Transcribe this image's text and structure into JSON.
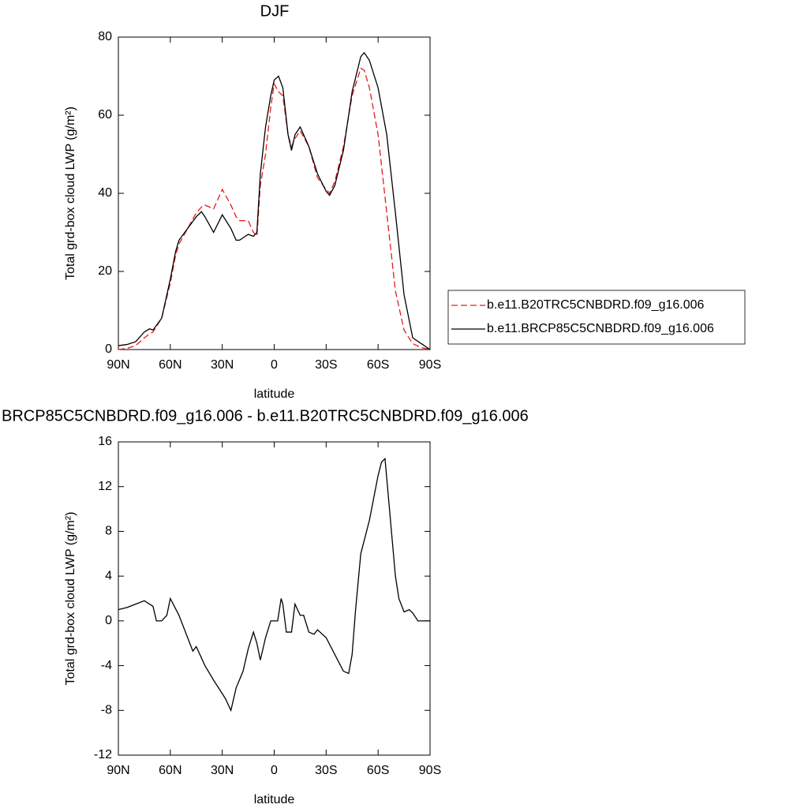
{
  "chart_data": [
    {
      "type": "line",
      "title": "DJF",
      "xlabel": "latitude",
      "ylabel": "Total grd-box cloud LWP (g/m²)",
      "x": [
        90,
        85,
        80,
        75,
        72,
        70,
        65,
        60,
        57,
        55,
        50,
        45,
        42,
        40,
        35,
        30,
        25,
        22,
        20,
        15,
        12,
        10,
        8,
        5,
        2,
        0,
        -2.5,
        -5,
        -8,
        -10,
        -12,
        -15,
        -20,
        -25,
        -30,
        -32,
        -35,
        -40,
        -45,
        -50,
        -52,
        -55,
        -60,
        -65,
        -70,
        -75,
        -80,
        -85,
        -90
      ],
      "series": [
        {
          "name": "b.e11.B20TRC5CNBDRD.f09_g16.006",
          "color": "#e41a1c",
          "line_style": "dashed",
          "values": [
            0,
            0.3,
            1,
            3,
            4,
            4.5,
            8,
            17,
            24,
            27,
            31,
            35,
            36.5,
            37,
            36,
            41,
            37,
            34,
            33,
            33,
            30,
            29,
            42,
            50,
            62,
            68,
            66,
            65,
            55,
            52,
            54,
            56,
            52,
            44,
            41,
            40,
            43,
            52,
            65,
            72,
            71.5,
            67,
            55,
            35,
            15,
            5,
            1.5,
            0.5,
            0
          ]
        },
        {
          "name": "b.e11.BRCP85C5CNBDRD.f09_g16.006",
          "color": "#000000",
          "line_style": "solid",
          "values": [
            1,
            1.3,
            2,
            4.5,
            5.3,
            5,
            8,
            18,
            25,
            28,
            31,
            34,
            35.3,
            34,
            30,
            34.5,
            31,
            28,
            28,
            29.5,
            29,
            30,
            45,
            57,
            65,
            69,
            70,
            67,
            55,
            51,
            55,
            57,
            52,
            45,
            40.5,
            39.5,
            42,
            51,
            66,
            75,
            76,
            74,
            67,
            55,
            35,
            14,
            3,
            1.5,
            0
          ]
        }
      ],
      "xlim": [
        90,
        -90
      ],
      "xticks": [
        {
          "value": 90,
          "label": "90N"
        },
        {
          "value": 60,
          "label": "60N"
        },
        {
          "value": 30,
          "label": "30N"
        },
        0,
        {
          "value": -30,
          "label": "30S"
        },
        {
          "value": -60,
          "label": "60S"
        },
        {
          "value": -90,
          "label": "90S"
        }
      ],
      "ylim": [
        0,
        80
      ],
      "yticks": [
        0,
        20,
        40,
        60,
        80
      ],
      "legend": "right"
    },
    {
      "type": "line",
      "title": "BRCP85C5CNBDRD.f09_g16.006 - b.e11.B20TRC5CNBDRD.f09_g16.006",
      "xlabel": "latitude",
      "ylabel": "Total grd-box cloud LWP (g/m²)",
      "x": [
        90,
        85,
        80,
        75,
        70,
        68,
        65,
        62,
        60,
        55,
        50,
        47,
        45,
        40,
        35,
        30,
        28,
        25,
        22,
        18,
        15,
        12,
        10,
        8,
        5,
        2,
        0,
        -2,
        -4,
        -5,
        -7,
        -10,
        -12,
        -15,
        -17,
        -20,
        -23,
        -25,
        -30,
        -35,
        -40,
        -43,
        -45,
        -47,
        -50,
        -55,
        -60,
        -62,
        -64,
        -66,
        -70,
        -72,
        -75,
        -78,
        -80,
        -83,
        -90
      ],
      "values": [
        1,
        1.2,
        1.5,
        1.8,
        1.3,
        0,
        0,
        0.5,
        2,
        0.5,
        -1.5,
        -2.7,
        -2.3,
        -4,
        -5.3,
        -6.5,
        -7,
        -8,
        -6,
        -4.5,
        -2.5,
        -1,
        -2,
        -3.5,
        -1.5,
        0,
        0,
        0,
        2,
        1.5,
        -1,
        -1,
        1.5,
        0.5,
        0.5,
        -1,
        -1.2,
        -0.8,
        -1.5,
        -3,
        -4.5,
        -4.7,
        -3,
        1,
        6,
        9,
        13,
        14.2,
        14.5,
        11,
        4,
        2,
        0.8,
        1,
        0.7,
        0,
        0
      ],
      "color": "#000000",
      "line_style": "solid",
      "xlim": [
        90,
        -90
      ],
      "xticks": [
        {
          "value": 90,
          "label": "90N"
        },
        {
          "value": 60,
          "label": "60N"
        },
        {
          "value": 30,
          "label": "30N"
        },
        0,
        {
          "value": -30,
          "label": "30S"
        },
        {
          "value": -60,
          "label": "60S"
        },
        {
          "value": -90,
          "label": "90S"
        }
      ],
      "ylim": [
        -12,
        16
      ],
      "yticks": [
        -12,
        -8,
        -4,
        0,
        4,
        8,
        12,
        16
      ]
    }
  ]
}
